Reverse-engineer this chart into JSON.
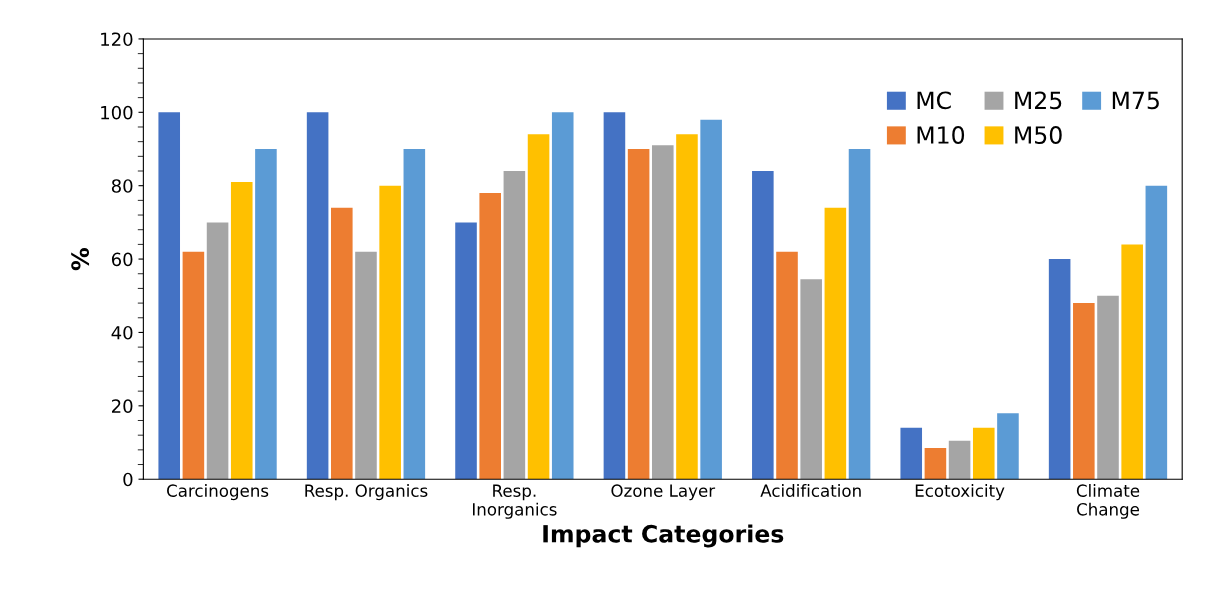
{
  "chart_data": {
    "type": "bar",
    "xlabel": "Impact Categories",
    "ylabel": "%",
    "categories": [
      "Carcinogens",
      "Resp. Organics",
      "Resp.\nInorganics",
      "Ozone Layer",
      "Acidification",
      "Ecotoxicity",
      "Climate\nChange"
    ],
    "series": [
      {
        "name": "MC",
        "color": "#4472c4",
        "values": [
          100,
          100,
          70,
          100,
          84,
          14,
          60
        ]
      },
      {
        "name": "M10",
        "color": "#ed7d31",
        "values": [
          62,
          74,
          78,
          90,
          62,
          8.5,
          48
        ]
      },
      {
        "name": "M25",
        "color": "#a5a5a5",
        "values": [
          70,
          62,
          84,
          91,
          54.5,
          10.5,
          50
        ]
      },
      {
        "name": "M50",
        "color": "#ffc000",
        "values": [
          81,
          80,
          94,
          94,
          74,
          14,
          64
        ]
      },
      {
        "name": "M75",
        "color": "#5b9bd5",
        "values": [
          90,
          90,
          100,
          98,
          90,
          18,
          80
        ]
      }
    ],
    "ylim": [
      0,
      120
    ],
    "yticks": [
      0,
      20,
      40,
      60,
      80,
      100,
      120
    ],
    "grid": false,
    "legend": "top right"
  }
}
